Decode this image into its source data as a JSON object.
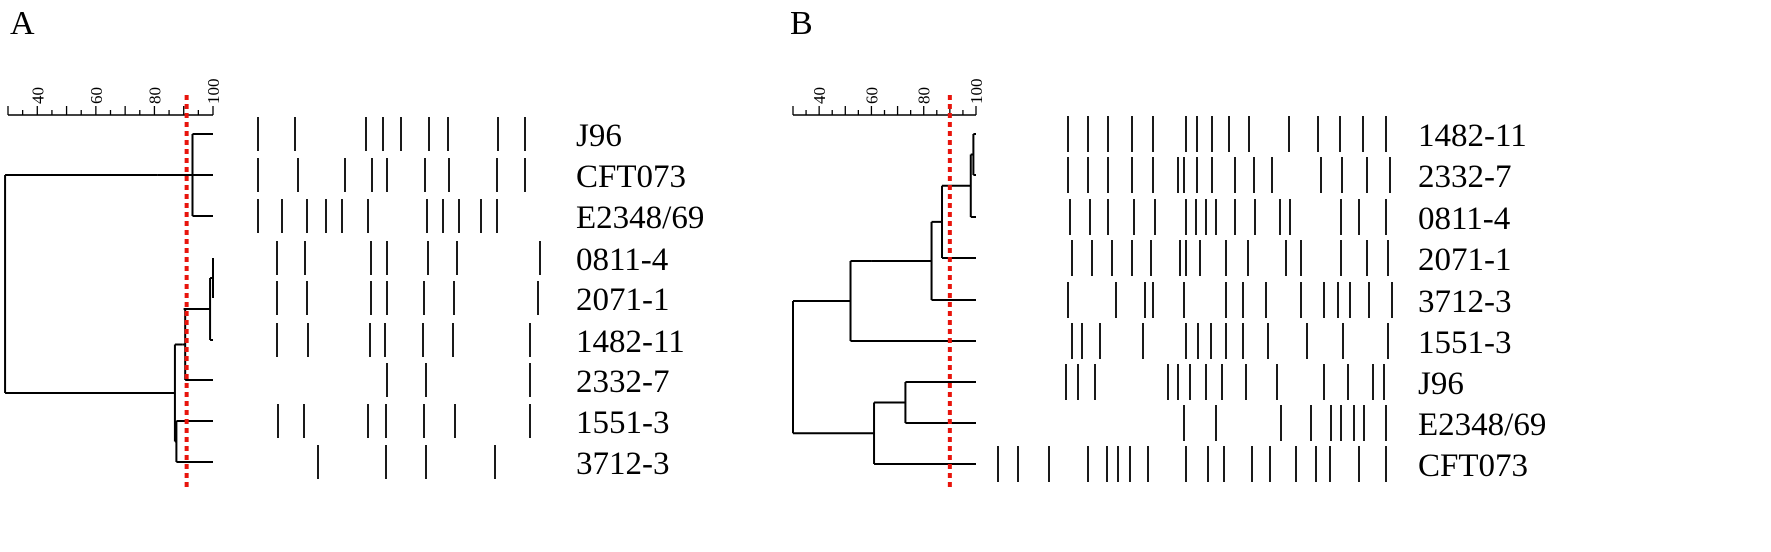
{
  "panels": [
    {
      "label": "A",
      "scale_ticks": [
        "40",
        "60",
        "80",
        "100"
      ],
      "cutoff_similarity": 91,
      "strains": [
        "J96",
        "CFT073",
        "E2348/69",
        "0811-4",
        "2071-1",
        "1482-11",
        "2332-7",
        "1551-3",
        "3712-3"
      ]
    },
    {
      "label": "B",
      "scale_ticks": [
        "40",
        "60",
        "80",
        "100"
      ],
      "cutoff_similarity": 90,
      "strains": [
        "1482-11",
        "2332-7",
        "0811-4",
        "2071-1",
        "3712-3",
        "1551-3",
        "J96",
        "E2348/69",
        "CFT073"
      ]
    }
  ],
  "colors": {
    "line": "#000000",
    "cutoff": "#e8140c"
  }
}
